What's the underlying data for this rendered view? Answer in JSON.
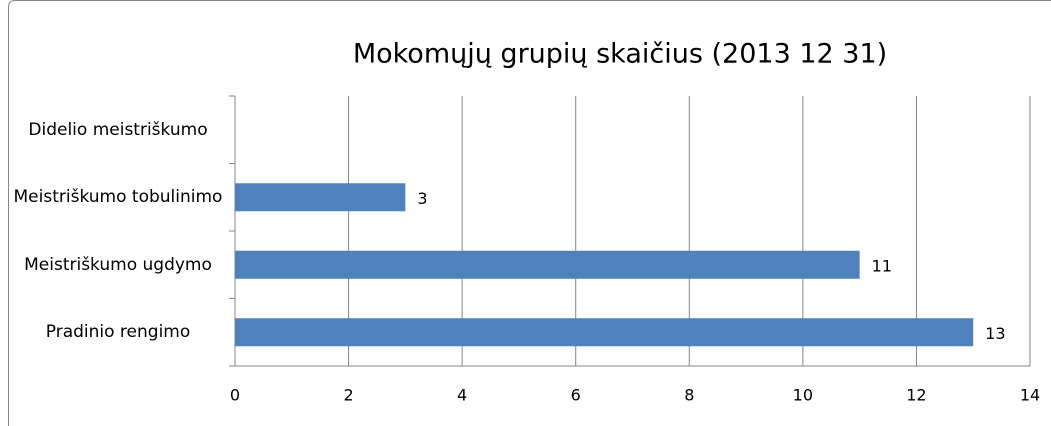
{
  "chart_data": {
    "type": "bar",
    "orientation": "horizontal",
    "title": "Mokomųjų grupių skaičius (2013 12 31)",
    "categories": [
      "Didelio meistriškumo",
      "Meistriškumo tobulinimo",
      "Meistriškumo ugdymo",
      "Pradinio rengimo"
    ],
    "values": [
      null,
      3,
      11,
      13
    ],
    "color": "#4f81bd",
    "xlim": [
      0,
      14
    ],
    "xticks": [
      0,
      2,
      4,
      6,
      8,
      10,
      12,
      14
    ],
    "grid": true
  }
}
